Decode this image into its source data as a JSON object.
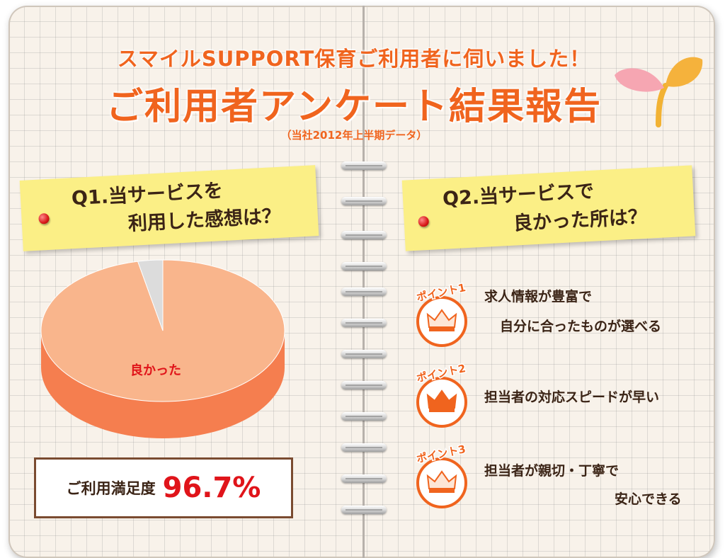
{
  "header": {
    "subtitle": "スマイルSUPPORT保育ご利用者に伺いました！",
    "title": "ご利用者アンケート結果報告",
    "note": "（当社2012年上半期データ）"
  },
  "q1": {
    "line1": "Q1.当サービスを",
    "line2": "利用した感想は？"
  },
  "q2": {
    "line1": "Q2.当サービスで",
    "line2": "良かった所は？"
  },
  "chart_data": {
    "type": "pie",
    "slices": [
      {
        "label": "良かった",
        "value": 96.7
      },
      {
        "label": "",
        "value": 3.3
      }
    ],
    "colors": {
      "main_top": "#f9b58c",
      "main_side": "#f57e4f",
      "other_top": "#dcdcdc",
      "other_side": "#b8b8b8",
      "label": "#e0141a"
    }
  },
  "satisfaction": {
    "label": "ご利用満足度",
    "value": "96.7%"
  },
  "points": [
    {
      "badge": "ポイント1",
      "line1": "求人情報が豊富で",
      "line2": "自分に合ったものが選べる",
      "icon": "crown-icon"
    },
    {
      "badge": "ポイント2",
      "line1": "担当者の対応スピードが早い",
      "line2": "",
      "icon": "crown-icon"
    },
    {
      "badge": "ポイント3",
      "line1": "担当者が親切・丁寧で",
      "line2": "安心できる",
      "icon": "crown-icon"
    }
  ],
  "colors": {
    "accent": "#f0641e",
    "note": "#fbef86",
    "text": "#3b2416",
    "highlight": "#e0141a"
  }
}
